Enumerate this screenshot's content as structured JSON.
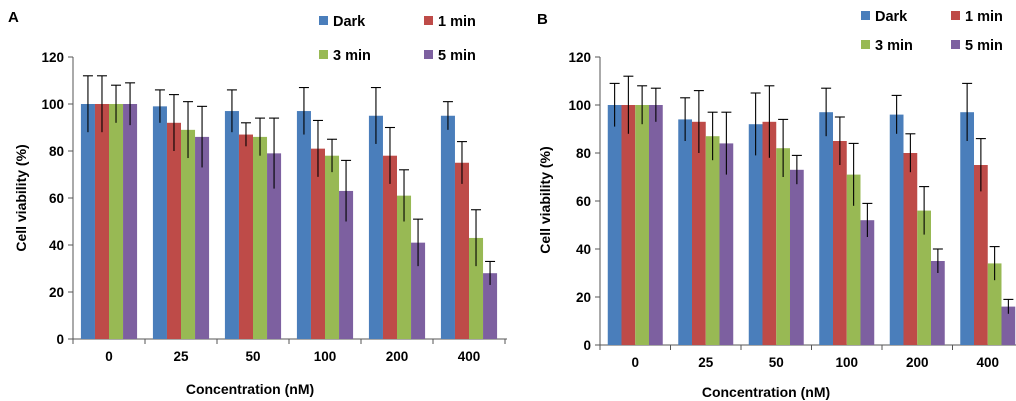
{
  "chart_data": [
    {
      "panel": "A",
      "type": "bar",
      "categories": [
        "0",
        "25",
        "50",
        "100",
        "200",
        "400"
      ],
      "xlabel": "Concentration (nM)",
      "ylabel": "Cell viability (%)",
      "ylim": [
        0,
        120
      ],
      "yticks": [
        "0",
        "20",
        "40",
        "60",
        "80",
        "100",
        "120"
      ],
      "grid": false,
      "legend_position": "top-right",
      "series": [
        {
          "name": "Dark",
          "color": "#4a7ebb",
          "values": [
            100,
            99,
            97,
            97,
            95,
            95
          ],
          "errors": [
            12,
            7,
            9,
            10,
            12,
            6
          ]
        },
        {
          "name": "1 min",
          "color": "#be4b48",
          "values": [
            100,
            92,
            87,
            81,
            78,
            75
          ],
          "errors": [
            12,
            12,
            5,
            12,
            12,
            9
          ]
        },
        {
          "name": "3 min",
          "color": "#98b954",
          "values": [
            100,
            89,
            86,
            78,
            61,
            43
          ],
          "errors": [
            8,
            12,
            8,
            7,
            11,
            12
          ]
        },
        {
          "name": "5 min",
          "color": "#7d60a0",
          "values": [
            100,
            86,
            79,
            63,
            41,
            28
          ],
          "errors": [
            9,
            13,
            15,
            13,
            10,
            5
          ]
        }
      ]
    },
    {
      "panel": "B",
      "type": "bar",
      "categories": [
        "0",
        "25",
        "50",
        "100",
        "200",
        "400"
      ],
      "xlabel": "Concentration (nM)",
      "ylabel": "Cell viability (%)",
      "ylim": [
        0,
        120
      ],
      "yticks": [
        "0",
        "20",
        "40",
        "60",
        "80",
        "100",
        "120"
      ],
      "grid": false,
      "legend_position": "top-right",
      "series": [
        {
          "name": "Dark",
          "color": "#4a7ebb",
          "values": [
            100,
            94,
            92,
            97,
            96,
            97
          ],
          "errors": [
            9,
            9,
            13,
            10,
            8,
            12
          ]
        },
        {
          "name": "1 min",
          "color": "#be4b48",
          "values": [
            100,
            93,
            93,
            85,
            80,
            75
          ],
          "errors": [
            12,
            13,
            15,
            10,
            8,
            11
          ]
        },
        {
          "name": "3 min",
          "color": "#98b954",
          "values": [
            100,
            87,
            82,
            71,
            56,
            34
          ],
          "errors": [
            8,
            10,
            12,
            13,
            10,
            7
          ]
        },
        {
          "name": "5 min",
          "color": "#7d60a0",
          "values": [
            100,
            84,
            73,
            52,
            35,
            16
          ],
          "errors": [
            7,
            13,
            6,
            7,
            5,
            3
          ]
        }
      ]
    }
  ]
}
